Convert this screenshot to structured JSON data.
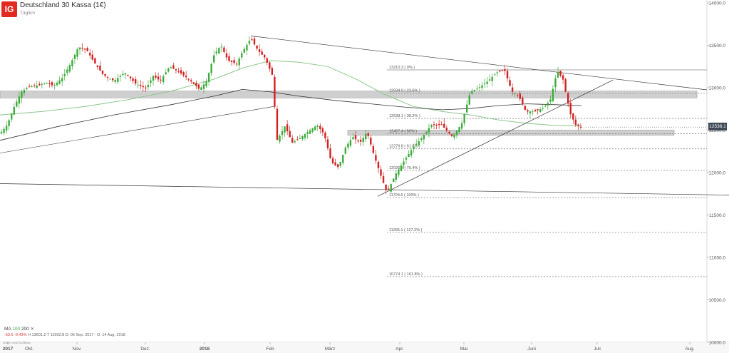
{
  "header": {
    "logo": "IG",
    "title": "Deutschland 30 Kassa (1€)",
    "subtitle": "Täglich"
  },
  "indicator": {
    "label_ma": "MA",
    "ma1": "100",
    "ma2": "200",
    "change_abs": "-53.6",
    "change_pct": "-0.43%",
    "high": "H 13601.2",
    "low": "T 11592.8",
    "range": "D: 06 Sep. 2017 - D: 14 Aug. 2018"
  },
  "source": "Daten sind indikativ",
  "last_price": "12536.1",
  "colors": {
    "up": "#3cab3c",
    "down": "#d22020",
    "ma_slow": "#8fc58f",
    "ma_fast": "#333333",
    "fib": "#888888",
    "zone": "#bfbfbf",
    "trend": "#333333"
  },
  "chart_data": {
    "type": "candlestick",
    "title": "Deutschland 30 Kassa (1€)",
    "interval": "Täglich",
    "y_axis": {
      "position": "right",
      "ylim": [
        10000,
        14000
      ],
      "ticks": [
        "14000.0",
        "13500.0",
        "13000.0",
        "12500.0",
        "12000.0",
        "11500.0",
        "11000.0",
        "10500.0",
        "10000.0"
      ]
    },
    "x_axis": {
      "ticks": [
        "2017",
        "Okt.",
        "Nov.",
        "Dez.",
        "2018",
        "Feb",
        "März",
        "Apr.",
        "Mai",
        "Juni",
        "Juli",
        "Aug."
      ]
    },
    "last_price": 12536.1,
    "fib_levels": [
      {
        "label": "13210.3 ( 0% )",
        "value": 13210.3
      },
      {
        "label": "12934.9 ( 23.6% )",
        "value": 12934.9
      },
      {
        "label": "12638.1 ( 38.2% )",
        "value": 12638.1
      },
      {
        "label": "12457.4 ( 50% )",
        "value": 12457.4
      },
      {
        "label": "12279.8 ( 61.8% )",
        "value": 12279.8
      },
      {
        "label": "12026.3 ( 76.4% )",
        "value": 12026.3
      },
      {
        "label": "11704.6 ( 100% )",
        "value": 11704.6
      },
      {
        "label": "11295.1 ( 127.2% )",
        "value": 11295.1
      },
      {
        "label": "10774.1 ( 161.8% )",
        "value": 10774.1
      }
    ],
    "zones": [
      {
        "from": 12880,
        "to": 12960
      },
      {
        "from": 12440,
        "to": 12500
      }
    ],
    "candle_color_rule": "up green, down red",
    "legend": "bottom-left"
  }
}
